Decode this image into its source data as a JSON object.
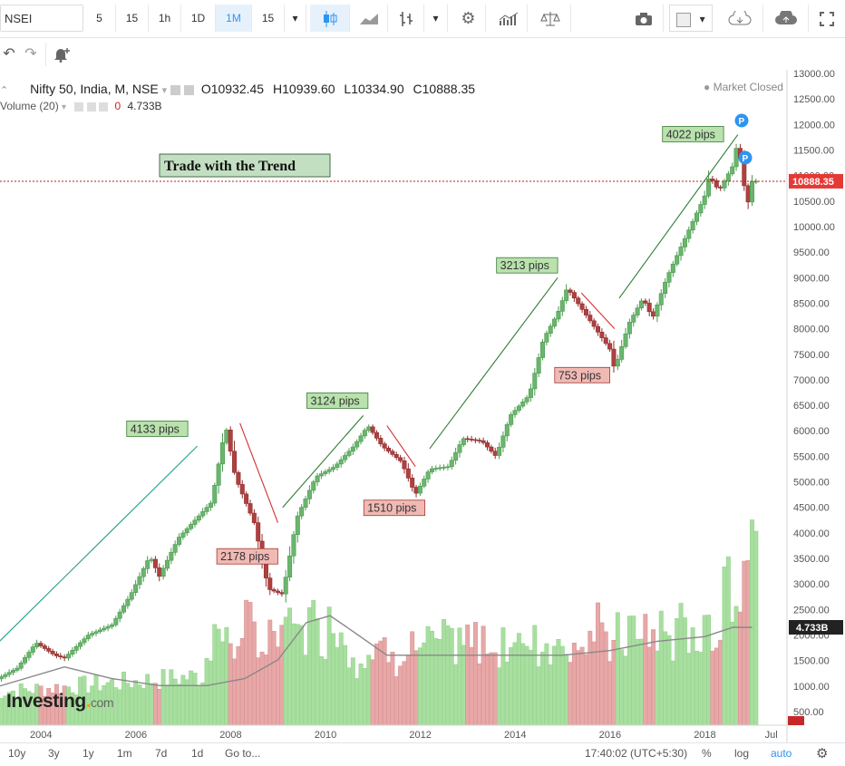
{
  "toolbar": {
    "symbol": "NSEI",
    "intervals": [
      "5",
      "15",
      "1h",
      "1D",
      "1M",
      "15"
    ],
    "active_interval": "1M"
  },
  "legend": {
    "title": "Nifty 50, India, M, NSE",
    "o_label": "O",
    "o": "10932.45",
    "h_label": "H",
    "h": "10939.60",
    "l_label": "L",
    "l": "10334.90",
    "c_label": "C",
    "c": "10888.35",
    "volume_label": "Volume (20)",
    "volume_count": "0",
    "volume_value": "4.733B",
    "market_status": "Market Closed"
  },
  "annotation": {
    "trend_text": "Trade with the Trend"
  },
  "pips": {
    "p1": "4133 pips",
    "p2": "2178 pips",
    "p3": "3124 pips",
    "p4": "1510 pips",
    "p5": "3213 pips",
    "p6": "753 pips",
    "p7": "4022 pips"
  },
  "price_label": "10888.35",
  "volume_label": "4.733B",
  "bottombar": {
    "ranges": [
      "10y",
      "3y",
      "1y",
      "1m",
      "7d",
      "1d"
    ],
    "goto": "Go to...",
    "time": "17:40:02 (UTC+5:30)",
    "pct": "%",
    "log": "log",
    "auto": "auto"
  },
  "logo": {
    "main": "Investing",
    "suffix": "com"
  },
  "colors": {
    "up": "#6bb56e",
    "down": "#b04040",
    "vol_up": "#a8dfa0",
    "vol_down": "#e8a8a8",
    "accent": "#2f94f0",
    "price_tag": "#e53935"
  },
  "chart_data": {
    "type": "candlestick",
    "title": "Nifty 50, India, M, NSE",
    "y_ticks": [
      500,
      1000,
      1500,
      2000,
      2500,
      3000,
      3500,
      4000,
      4500,
      5000,
      5500,
      6000,
      6500,
      7000,
      7500,
      8000,
      8500,
      9000,
      9500,
      10000,
      10500,
      11000,
      11500,
      12000,
      12500,
      13000
    ],
    "y_tick_labels": [
      "500.00",
      "1000.00",
      "1500.00",
      "2000.00",
      "2500.00",
      "3000.00",
      "3500.00",
      "4000.00",
      "4500.00",
      "5000.00",
      "5500.00",
      "6000.00",
      "6500.00",
      "7000.00",
      "7500.00",
      "8000.00",
      "8500.00",
      "9000.00",
      "9500.00",
      "10000.00",
      "10500.00",
      "11000.00",
      "11500.00",
      "12000.00",
      "12500.00",
      "13000.00"
    ],
    "x_labels": [
      "2004",
      "2006",
      "2008",
      "2010",
      "2012",
      "2014",
      "2016",
      "2018",
      "Jul"
    ],
    "x_years": [
      2004,
      2006,
      2008,
      2010,
      2012,
      2014,
      2016,
      2018,
      2019.5
    ],
    "ylim": [
      500,
      13000
    ],
    "close_path": [
      [
        2003.0,
        1100
      ],
      [
        2003.5,
        1350
      ],
      [
        2003.9,
        1850
      ],
      [
        2004.3,
        1600
      ],
      [
        2004.5,
        1550
      ],
      [
        2005.0,
        2000
      ],
      [
        2005.5,
        2200
      ],
      [
        2005.9,
        2800
      ],
      [
        2006.3,
        3550
      ],
      [
        2006.5,
        3150
      ],
      [
        2006.9,
        3900
      ],
      [
        2007.3,
        4300
      ],
      [
        2007.6,
        4600
      ],
      [
        2007.9,
        6100
      ],
      [
        2008.1,
        5100
      ],
      [
        2008.5,
        4200
      ],
      [
        2008.8,
        2900
      ],
      [
        2009.1,
        2800
      ],
      [
        2009.4,
        4300
      ],
      [
        2009.8,
        5100
      ],
      [
        2010.2,
        5300
      ],
      [
        2010.6,
        5700
      ],
      [
        2010.9,
        6100
      ],
      [
        2011.2,
        5700
      ],
      [
        2011.6,
        5400
      ],
      [
        2011.9,
        4750
      ],
      [
        2012.2,
        5250
      ],
      [
        2012.6,
        5300
      ],
      [
        2012.9,
        5850
      ],
      [
        2013.3,
        5800
      ],
      [
        2013.6,
        5500
      ],
      [
        2013.9,
        6300
      ],
      [
        2014.3,
        6700
      ],
      [
        2014.6,
        7800
      ],
      [
        2014.9,
        8300
      ],
      [
        2015.1,
        8800
      ],
      [
        2015.4,
        8400
      ],
      [
        2015.7,
        8000
      ],
      [
        2016.0,
        7600
      ],
      [
        2016.1,
        7200
      ],
      [
        2016.4,
        8100
      ],
      [
        2016.7,
        8600
      ],
      [
        2016.9,
        8200
      ],
      [
        2017.2,
        9000
      ],
      [
        2017.5,
        9600
      ],
      [
        2017.8,
        10200
      ],
      [
        2018.0,
        10600
      ],
      [
        2018.1,
        11000
      ],
      [
        2018.3,
        10700
      ],
      [
        2018.6,
        11200
      ],
      [
        2018.7,
        11700
      ],
      [
        2018.8,
        11000
      ],
      [
        2018.9,
        10400
      ],
      [
        2019.0,
        10888
      ]
    ],
    "trendlines": [
      {
        "from": [
          2003.1,
          1850
        ],
        "to": [
          2007.3,
          5700
        ],
        "color": "#2a9d8f"
      },
      {
        "from": [
          2008.2,
          6150
        ],
        "to": [
          2009.0,
          4200
        ],
        "color": "#d32f2f"
      },
      {
        "from": [
          2009.1,
          4500
        ],
        "to": [
          2010.8,
          6300
        ],
        "color": "#2e7d32"
      },
      {
        "from": [
          2011.3,
          6100
        ],
        "to": [
          2011.9,
          5300
        ],
        "color": "#d32f2f"
      },
      {
        "from": [
          2012.2,
          5650
        ],
        "to": [
          2014.9,
          9000
        ],
        "color": "#2e7d32"
      },
      {
        "from": [
          2015.4,
          8700
        ],
        "to": [
          2016.1,
          8000
        ],
        "color": "#d32f2f"
      },
      {
        "from": [
          2016.2,
          8600
        ],
        "to": [
          2018.7,
          11800
        ],
        "color": "#2e7d32"
      }
    ],
    "volume_ma": [
      [
        2003.0,
        800
      ],
      [
        2004.5,
        1250
      ],
      [
        2005.5,
        1000
      ],
      [
        2006.5,
        850
      ],
      [
        2007.5,
        850
      ],
      [
        2008.3,
        1000
      ],
      [
        2009.0,
        1400
      ],
      [
        2009.6,
        2200
      ],
      [
        2010.1,
        2350
      ],
      [
        2010.6,
        2000
      ],
      [
        2011.3,
        1500
      ],
      [
        2012.0,
        1500
      ],
      [
        2013.0,
        1500
      ],
      [
        2014.0,
        1500
      ],
      [
        2015.0,
        1500
      ],
      [
        2016.0,
        1600
      ],
      [
        2017.0,
        1800
      ],
      [
        2018.0,
        1900
      ],
      [
        2018.6,
        2100
      ],
      [
        2019.0,
        2100
      ]
    ],
    "volume_max": 3500
  }
}
